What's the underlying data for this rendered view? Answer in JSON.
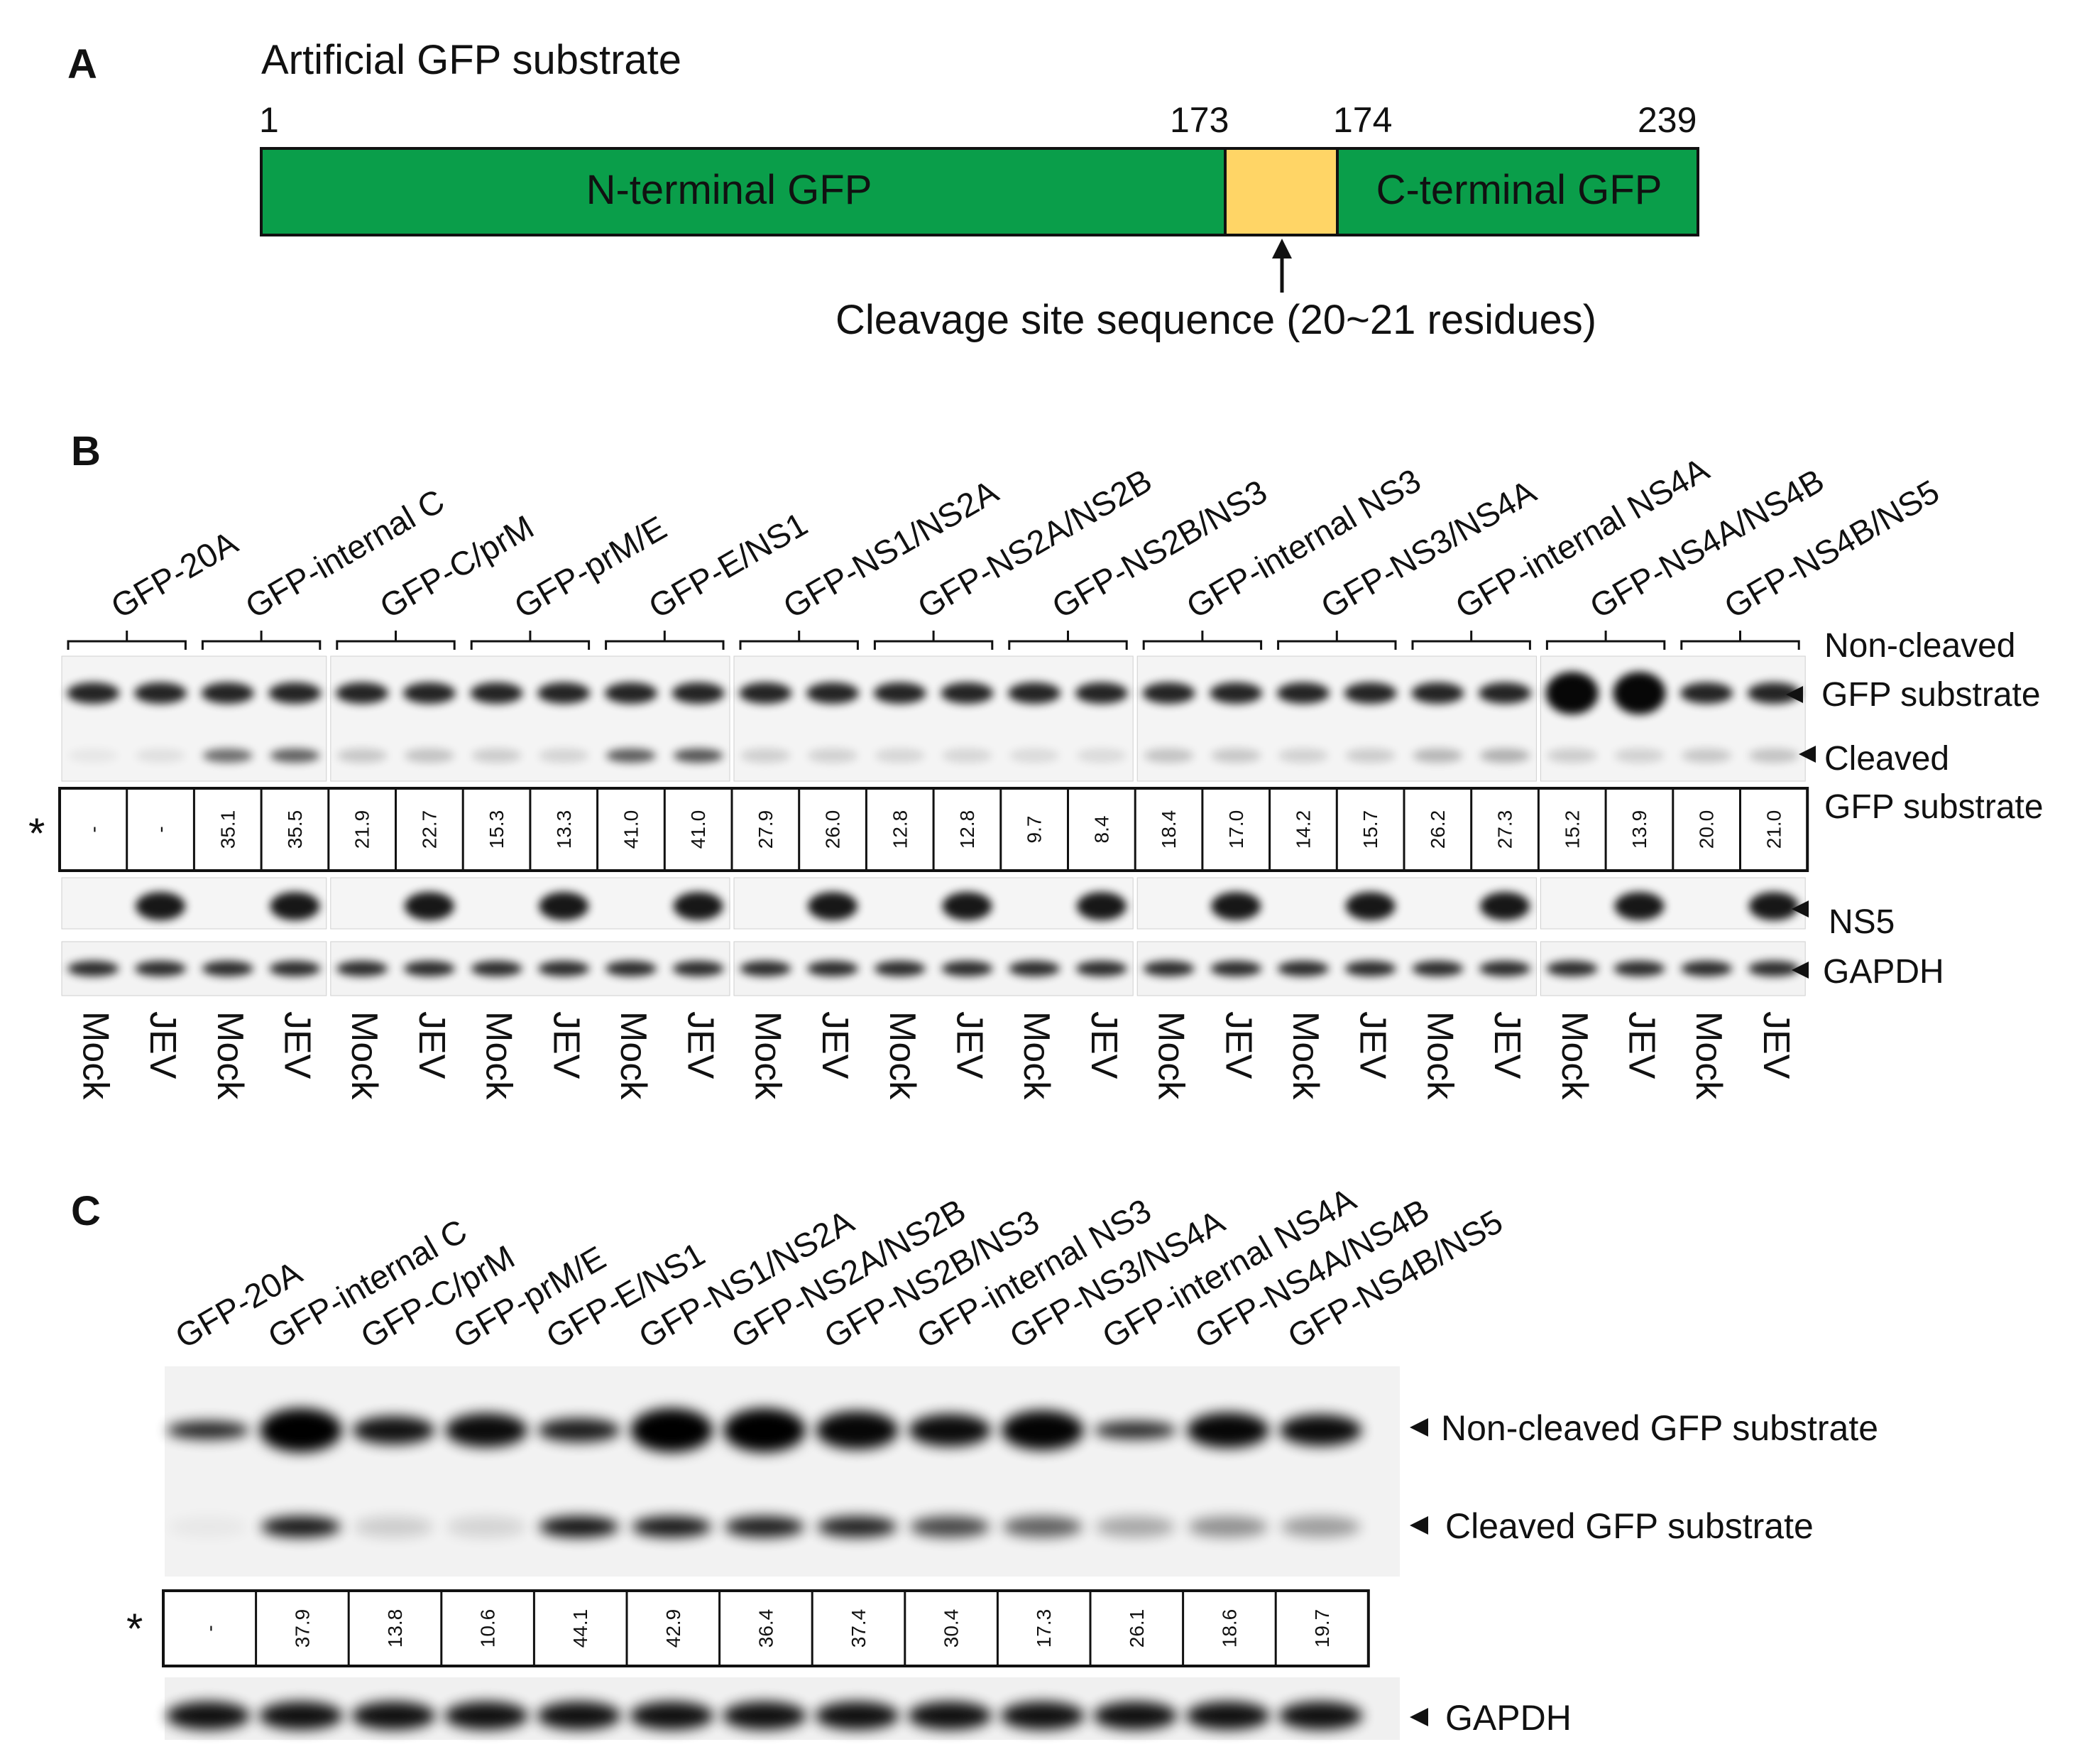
{
  "panelA": {
    "letter": "A",
    "title": "Artificial GFP substrate",
    "pos_1": "1",
    "pos_173": "173",
    "pos_174": "174",
    "pos_239": "239",
    "n_label": "N-terminal GFP",
    "c_label": "C-terminal GFP",
    "cleavage_label": "Cleavage site sequence (20~21 residues)",
    "colors": {
      "gfp": "#0a9e4a",
      "cleavage": "#ffd566"
    }
  },
  "panelB": {
    "letter": "B",
    "constructs": [
      "GFP-20A",
      "GFP-internal C",
      "GFP-C/prM",
      "GFP-prM/E",
      "GFP-E/NS1",
      "GFP-NS1/NS2A",
      "GFP-NS2A/NS2B",
      "GFP-NS2B/NS3",
      "GFP-internal NS3",
      "GFP-NS3/NS4A",
      "GFP-internal NS4A",
      "GFP-NS4A/NS4B",
      "GFP-NS4B/NS5"
    ],
    "lanes": [
      "Mock",
      "JEV",
      "Mock",
      "JEV",
      "Mock",
      "JEV",
      "Mock",
      "JEV",
      "Mock",
      "JEV",
      "Mock",
      "JEV",
      "Mock",
      "JEV",
      "Mock",
      "JEV",
      "Mock",
      "JEV",
      "Mock",
      "JEV",
      "Mock",
      "JEV",
      "Mock",
      "JEV",
      "Mock",
      "JEV"
    ],
    "quant": [
      "-",
      "-",
      "35.1",
      "35.5",
      "21.9",
      "22.7",
      "15.3",
      "13.3",
      "41.0",
      "41.0",
      "27.9",
      "26.0",
      "12.8",
      "12.8",
      "9.7",
      "8.4",
      "18.4",
      "17.0",
      "14.2",
      "15.7",
      "26.2",
      "27.3",
      "15.2",
      "13.9",
      "20.0",
      "21.0"
    ],
    "star": "*",
    "labels": {
      "noncleaved_1": "Non-cleaved",
      "noncleaved_2": "GFP substrate",
      "cleaved_1": "Cleaved",
      "cleaved_2": "GFP substrate",
      "ns5": "NS5",
      "gapdh": "GAPDH"
    }
  },
  "panelC": {
    "letter": "C",
    "constructs": [
      "GFP-20A",
      "GFP-internal C",
      "GFP-C/prM",
      "GFP-prM/E",
      "GFP-E/NS1",
      "GFP-NS1/NS2A",
      "GFP-NS2A/NS2B",
      "GFP-NS2B/NS3",
      "GFP-internal NS3",
      "GFP-NS3/NS4A",
      "GFP-internal NS4A",
      "GFP-NS4A/NS4B",
      "GFP-NS4B/NS5"
    ],
    "quant": [
      "-",
      "37.9",
      "13.8",
      "10.6",
      "44.1",
      "42.9",
      "36.4",
      "37.4",
      "30.4",
      "17.3",
      "26.1",
      "18.6",
      "19.7"
    ],
    "star": "*",
    "labels": {
      "noncleaved": "Non-cleaved GFP substrate",
      "cleaved": "Cleaved GFP substrate",
      "gapdh": "GAPDH"
    }
  }
}
